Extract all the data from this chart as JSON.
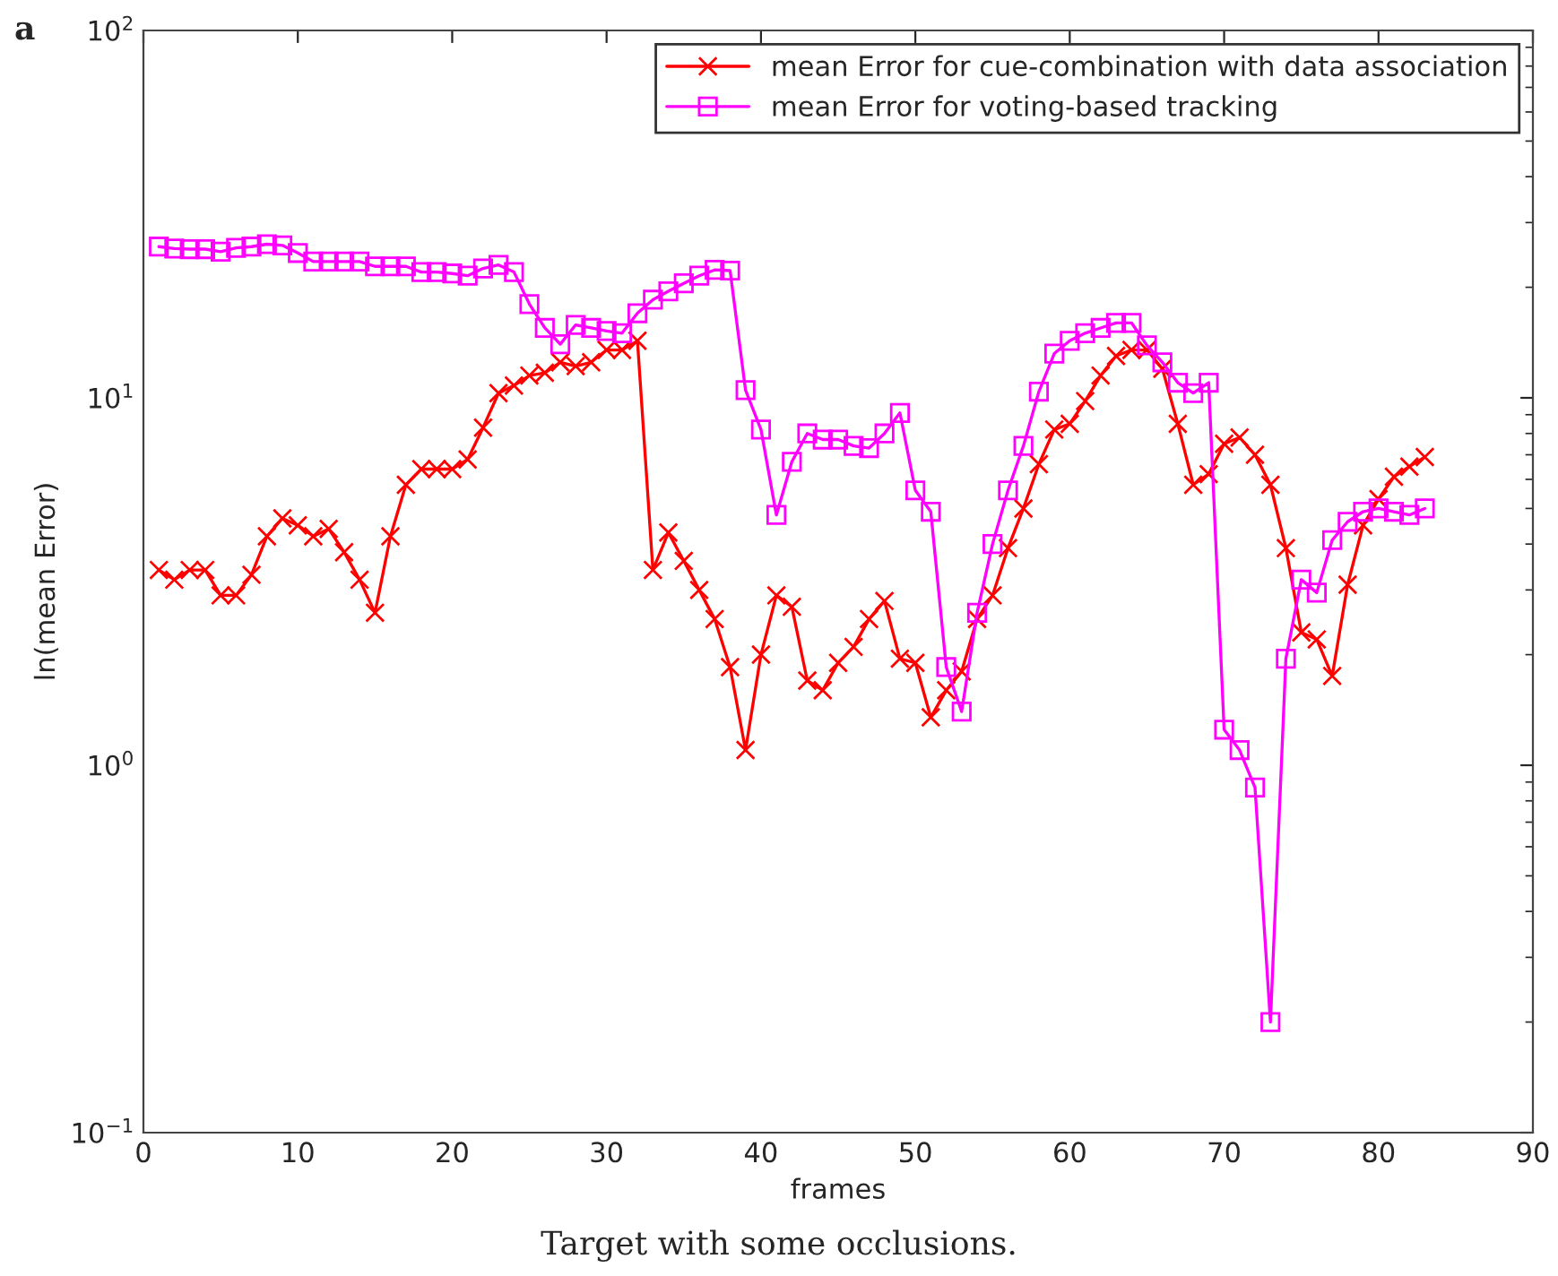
{
  "chart_data": {
    "type": "line",
    "xlabel": "frames",
    "ylabel": "ln(mean Error)",
    "x": [
      1,
      2,
      3,
      4,
      5,
      6,
      7,
      8,
      9,
      10,
      11,
      12,
      13,
      14,
      15,
      16,
      17,
      18,
      19,
      20,
      21,
      22,
      23,
      24,
      25,
      26,
      27,
      28,
      29,
      30,
      31,
      32,
      33,
      34,
      35,
      36,
      37,
      38,
      39,
      40,
      41,
      42,
      43,
      44,
      45,
      46,
      47,
      48,
      49,
      50,
      51,
      52,
      53,
      54,
      55,
      56,
      57,
      58,
      59,
      60,
      61,
      62,
      63,
      64,
      65,
      66,
      67,
      68,
      69,
      70,
      71,
      72,
      73,
      74,
      75,
      76,
      77,
      78,
      79,
      80,
      81,
      82,
      83
    ],
    "series": [
      {
        "name": "mean Error for cue-combination with data association",
        "color": "#ff0000",
        "marker": "cross",
        "values": [
          3.4,
          3.2,
          3.4,
          3.4,
          2.9,
          2.9,
          3.3,
          4.2,
          4.7,
          4.5,
          4.2,
          4.4,
          3.8,
          3.2,
          2.6,
          4.2,
          5.8,
          6.4,
          6.4,
          6.4,
          6.8,
          8.3,
          10.3,
          10.8,
          11.5,
          11.7,
          12.5,
          12.2,
          12.5,
          13.5,
          13.5,
          14.3,
          3.4,
          4.3,
          3.6,
          3.0,
          2.5,
          1.85,
          1.1,
          2.0,
          2.9,
          2.7,
          1.7,
          1.6,
          1.9,
          2.1,
          2.5,
          2.8,
          1.95,
          1.9,
          1.35,
          1.6,
          1.8,
          2.5,
          2.9,
          3.9,
          5.0,
          6.6,
          8.2,
          8.5,
          9.8,
          11.5,
          13,
          13.5,
          13.5,
          12,
          8.5,
          5.8,
          6.2,
          7.5,
          7.8,
          7.0,
          5.8,
          3.9,
          2.3,
          2.2,
          1.75,
          3.1,
          4.5,
          5.3,
          6.1,
          6.5,
          6.9
        ]
      },
      {
        "name": "mean Error for voting-based tracking",
        "color": "#ff00ff",
        "marker": "square",
        "values": [
          25.8,
          25.5,
          25.4,
          25.4,
          25,
          25.6,
          25.8,
          26.2,
          26,
          24.8,
          23.5,
          23.5,
          23.5,
          23.5,
          22.8,
          22.8,
          22.8,
          22,
          22,
          21.8,
          21.5,
          22.5,
          23,
          22,
          18,
          15.5,
          14,
          15.8,
          15.5,
          15.2,
          15,
          17,
          18.5,
          19.5,
          20.5,
          21.5,
          22.3,
          22.2,
          10.5,
          8.2,
          4.8,
          6.7,
          8.0,
          7.7,
          7.7,
          7.4,
          7.3,
          8.0,
          9.1,
          5.6,
          4.9,
          1.85,
          1.4,
          2.6,
          4.0,
          5.6,
          7.4,
          10.4,
          13.2,
          14.3,
          15,
          15.5,
          16,
          16,
          13.9,
          12.5,
          11,
          10.3,
          11,
          1.25,
          1.1,
          0.87,
          0.2,
          1.95,
          3.2,
          2.95,
          4.1,
          4.6,
          4.9,
          5.0,
          4.9,
          4.8,
          5.0
        ]
      }
    ],
    "log": "y",
    "xlim": [
      0,
      90
    ],
    "xticks": [
      0,
      10,
      20,
      30,
      40,
      50,
      60,
      70,
      80,
      90
    ],
    "ylim": [
      0.1,
      100
    ],
    "yticks": [
      {
        "value": 0.1,
        "label": "10$^{−1}$"
      },
      {
        "value": 1,
        "label": "10$^{0}$"
      },
      {
        "value": 10,
        "label": "10$^{1}$"
      },
      {
        "value": 100,
        "label": "10$^{2}$"
      }
    ],
    "grid": false,
    "legend": "top right",
    "line_style": "solid",
    "annotations": [
      "a",
      "Target with some occlusions."
    ]
  }
}
